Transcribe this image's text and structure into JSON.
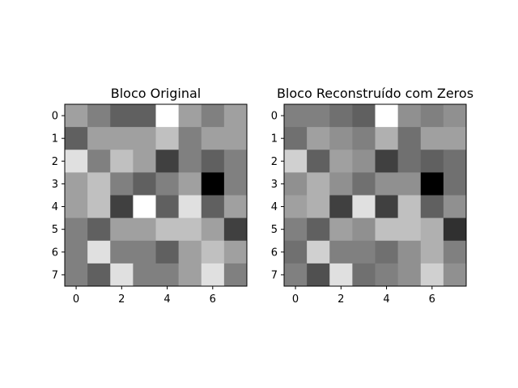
{
  "chart_data": [
    {
      "type": "heatmap",
      "title": "Bloco Original",
      "colormap": "gray",
      "vmin": 0,
      "vmax": 255,
      "xticks": [
        0,
        2,
        4,
        6
      ],
      "yticks": [
        0,
        1,
        2,
        3,
        4,
        5,
        6,
        7
      ],
      "values": [
        [
          160,
          128,
          96,
          96,
          255,
          160,
          128,
          160
        ],
        [
          96,
          160,
          160,
          160,
          192,
          128,
          160,
          160
        ],
        [
          224,
          128,
          192,
          160,
          64,
          128,
          96,
          128
        ],
        [
          160,
          192,
          128,
          96,
          128,
          160,
          0,
          128
        ],
        [
          160,
          192,
          64,
          255,
          96,
          224,
          96,
          160
        ],
        [
          128,
          96,
          160,
          160,
          192,
          192,
          160,
          64
        ],
        [
          128,
          224,
          128,
          128,
          96,
          160,
          192,
          160
        ],
        [
          128,
          96,
          224,
          128,
          128,
          160,
          224,
          128
        ]
      ]
    },
    {
      "type": "heatmap",
      "title": "Bloco Reconstruído com Zeros",
      "colormap": "gray",
      "vmin": 0,
      "vmax": 255,
      "xticks": [
        0,
        2,
        4,
        6
      ],
      "yticks": [
        0,
        1,
        2,
        3,
        4,
        5,
        6,
        7
      ],
      "values": [
        [
          128,
          128,
          112,
          96,
          255,
          144,
          128,
          144
        ],
        [
          112,
          160,
          144,
          128,
          176,
          112,
          160,
          160
        ],
        [
          208,
          96,
          160,
          144,
          64,
          112,
          96,
          112
        ],
        [
          144,
          176,
          144,
          112,
          144,
          144,
          0,
          112
        ],
        [
          160,
          176,
          64,
          224,
          64,
          192,
          96,
          144
        ],
        [
          128,
          96,
          160,
          144,
          192,
          192,
          176,
          48
        ],
        [
          112,
          208,
          128,
          128,
          112,
          144,
          176,
          128
        ],
        [
          128,
          80,
          224,
          112,
          128,
          144,
          208,
          144
        ]
      ]
    }
  ]
}
